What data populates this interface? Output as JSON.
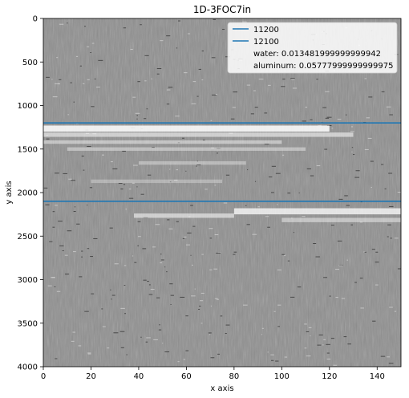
{
  "chart_data": {
    "type": "heatmap",
    "title": "1D-3FOC7in",
    "xlabel": "x axis",
    "ylabel": "y axis",
    "xlim": [
      0,
      150
    ],
    "ylim": [
      4000,
      0
    ],
    "y_inverted": true,
    "x_ticks": [
      "0",
      "20",
      "40",
      "60",
      "80",
      "100",
      "120",
      "140"
    ],
    "x_tick_values": [
      0,
      20,
      40,
      60,
      80,
      100,
      120,
      140
    ],
    "y_ticks": [
      "0",
      "500",
      "1000",
      "1500",
      "2000",
      "2500",
      "3000",
      "3500",
      "4000"
    ],
    "y_tick_values": [
      0,
      500,
      1000,
      1500,
      2000,
      2500,
      3000,
      3500,
      4000
    ],
    "colormap": "gray",
    "grid": false,
    "legend_position": "top-right",
    "series": [
      {
        "name": "11200",
        "type": "hline",
        "y": 1200,
        "color": "#1f77b4"
      },
      {
        "name": "12100",
        "type": "hline",
        "y": 2100,
        "color": "#1f77b4"
      }
    ],
    "legend_extra": [
      "water: 0.013481999999999942",
      "aluminum: 0.05777999999999975"
    ]
  }
}
